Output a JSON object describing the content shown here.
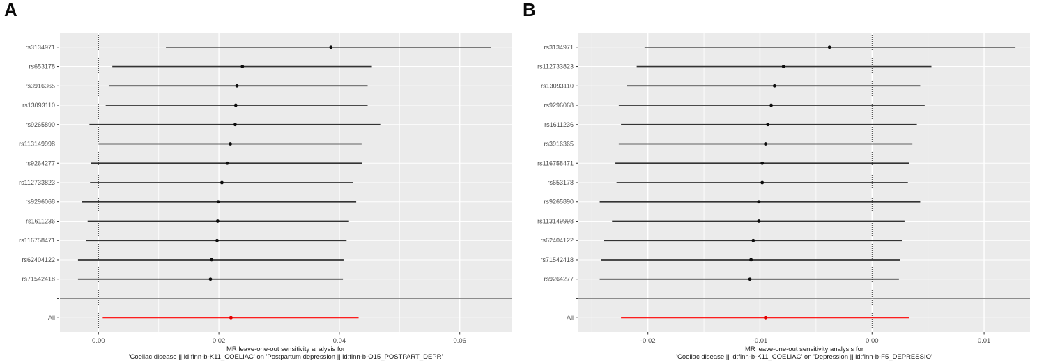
{
  "colors": {
    "panel_bg": "#ebebeb",
    "grid": "#ffffff",
    "ci_line": "#333333",
    "point": "#0d0d0d",
    "all_line": "#ff0000",
    "all_point": "#e00000",
    "axis_text": "#4d4d4d",
    "title_text": "#1a1a1a",
    "separator": "#8c8c8c",
    "zero_line": "#1a1a1a",
    "tick_mark": "#333333"
  },
  "chart_data": [
    {
      "type": "scatter",
      "subtype": "forest-leave-one-out",
      "label": "A",
      "title_line1": "MR leave-one-out sensitivity analysis for",
      "title_line2": "'Coeliac disease || id:finn-b-K11_COELIAC' on 'Postpartum depression || id:finn-b-O15_POSTPART_DEPR'",
      "all_label": "All",
      "xlim": [
        -0.0064,
        0.0686
      ],
      "x_ticks": [
        {
          "v": 0.0,
          "label": "0.00"
        },
        {
          "v": 0.02,
          "label": "0.02"
        },
        {
          "v": 0.04,
          "label": "0.04"
        },
        {
          "v": 0.06,
          "label": "0.06"
        }
      ],
      "x_minor": [
        0.01,
        0.03,
        0.05
      ],
      "zero_ref": 0,
      "rows": [
        {
          "snp": "rs3134971",
          "estimate": 0.0386,
          "ci_low": 0.0112,
          "ci_high": 0.0652
        },
        {
          "snp": "rs653178",
          "estimate": 0.0239,
          "ci_low": 0.0023,
          "ci_high": 0.0454
        },
        {
          "snp": "rs3916365",
          "estimate": 0.023,
          "ci_low": 0.0017,
          "ci_high": 0.0447
        },
        {
          "snp": "rs13093110",
          "estimate": 0.0228,
          "ci_low": 0.0012,
          "ci_high": 0.0447
        },
        {
          "snp": "rs9265890",
          "estimate": 0.0227,
          "ci_low": -0.0015,
          "ci_high": 0.0468
        },
        {
          "snp": "rs113149998",
          "estimate": 0.0219,
          "ci_low": 0.0,
          "ci_high": 0.0437
        },
        {
          "snp": "rs9264277",
          "estimate": 0.0214,
          "ci_low": -0.0013,
          "ci_high": 0.0438
        },
        {
          "snp": "rs112733823",
          "estimate": 0.0205,
          "ci_low": -0.0014,
          "ci_high": 0.0423
        },
        {
          "snp": "rs9296068",
          "estimate": 0.0199,
          "ci_low": -0.0028,
          "ci_high": 0.0428
        },
        {
          "snp": "rs1611236",
          "estimate": 0.0198,
          "ci_low": -0.0018,
          "ci_high": 0.0416
        },
        {
          "snp": "rs116758471",
          "estimate": 0.0197,
          "ci_low": -0.0021,
          "ci_high": 0.0412
        },
        {
          "snp": "rs62404122",
          "estimate": 0.0188,
          "ci_low": -0.0034,
          "ci_high": 0.0407
        },
        {
          "snp": "rs71542418",
          "estimate": 0.0186,
          "ci_low": -0.0034,
          "ci_high": 0.0406
        }
      ],
      "all": {
        "estimate": 0.022,
        "ci_low": 0.0007,
        "ci_high": 0.0432
      }
    },
    {
      "type": "scatter",
      "subtype": "forest-leave-one-out",
      "label": "B",
      "title_line1": "MR leave-one-out sensitivity analysis for",
      "title_line2": "'Coeliac disease || id:finn-b-K11_COELIAC' on 'Depression || id:finn-b-F5_DEPRESSIO'",
      "all_label": "All",
      "xlim": [
        -0.0262,
        0.0141
      ],
      "x_ticks": [
        {
          "v": -0.02,
          "label": "-0.02"
        },
        {
          "v": -0.01,
          "label": "-0.01"
        },
        {
          "v": 0.0,
          "label": "0.00"
        },
        {
          "v": 0.01,
          "label": "0.01"
        }
      ],
      "x_minor": [
        -0.025,
        -0.015,
        -0.005,
        0.005
      ],
      "zero_ref": 0,
      "rows": [
        {
          "snp": "rs3134971",
          "estimate": -0.0038,
          "ci_low": -0.0203,
          "ci_high": 0.0128
        },
        {
          "snp": "rs112733823",
          "estimate": -0.0079,
          "ci_low": -0.021,
          "ci_high": 0.0053
        },
        {
          "snp": "rs13093110",
          "estimate": -0.0087,
          "ci_low": -0.0219,
          "ci_high": 0.0043
        },
        {
          "snp": "rs9296068",
          "estimate": -0.009,
          "ci_low": -0.0226,
          "ci_high": 0.0047
        },
        {
          "snp": "rs1611236",
          "estimate": -0.0093,
          "ci_low": -0.0224,
          "ci_high": 0.004
        },
        {
          "snp": "rs3916365",
          "estimate": -0.0095,
          "ci_low": -0.0226,
          "ci_high": 0.0036
        },
        {
          "snp": "rs116758471",
          "estimate": -0.0098,
          "ci_low": -0.0229,
          "ci_high": 0.0033
        },
        {
          "snp": "rs653178",
          "estimate": -0.0098,
          "ci_low": -0.0228,
          "ci_high": 0.0032
        },
        {
          "snp": "rs9265890",
          "estimate": -0.0101,
          "ci_low": -0.0243,
          "ci_high": 0.0043
        },
        {
          "snp": "rs113149998",
          "estimate": -0.0101,
          "ci_low": -0.0232,
          "ci_high": 0.0029
        },
        {
          "snp": "rs62404122",
          "estimate": -0.0106,
          "ci_low": -0.0239,
          "ci_high": 0.0027
        },
        {
          "snp": "rs71542418",
          "estimate": -0.0108,
          "ci_low": -0.0242,
          "ci_high": 0.0025
        },
        {
          "snp": "rs9264277",
          "estimate": -0.0109,
          "ci_low": -0.0243,
          "ci_high": 0.0024
        }
      ],
      "all": {
        "estimate": -0.0095,
        "ci_low": -0.0224,
        "ci_high": 0.0033
      }
    }
  ]
}
